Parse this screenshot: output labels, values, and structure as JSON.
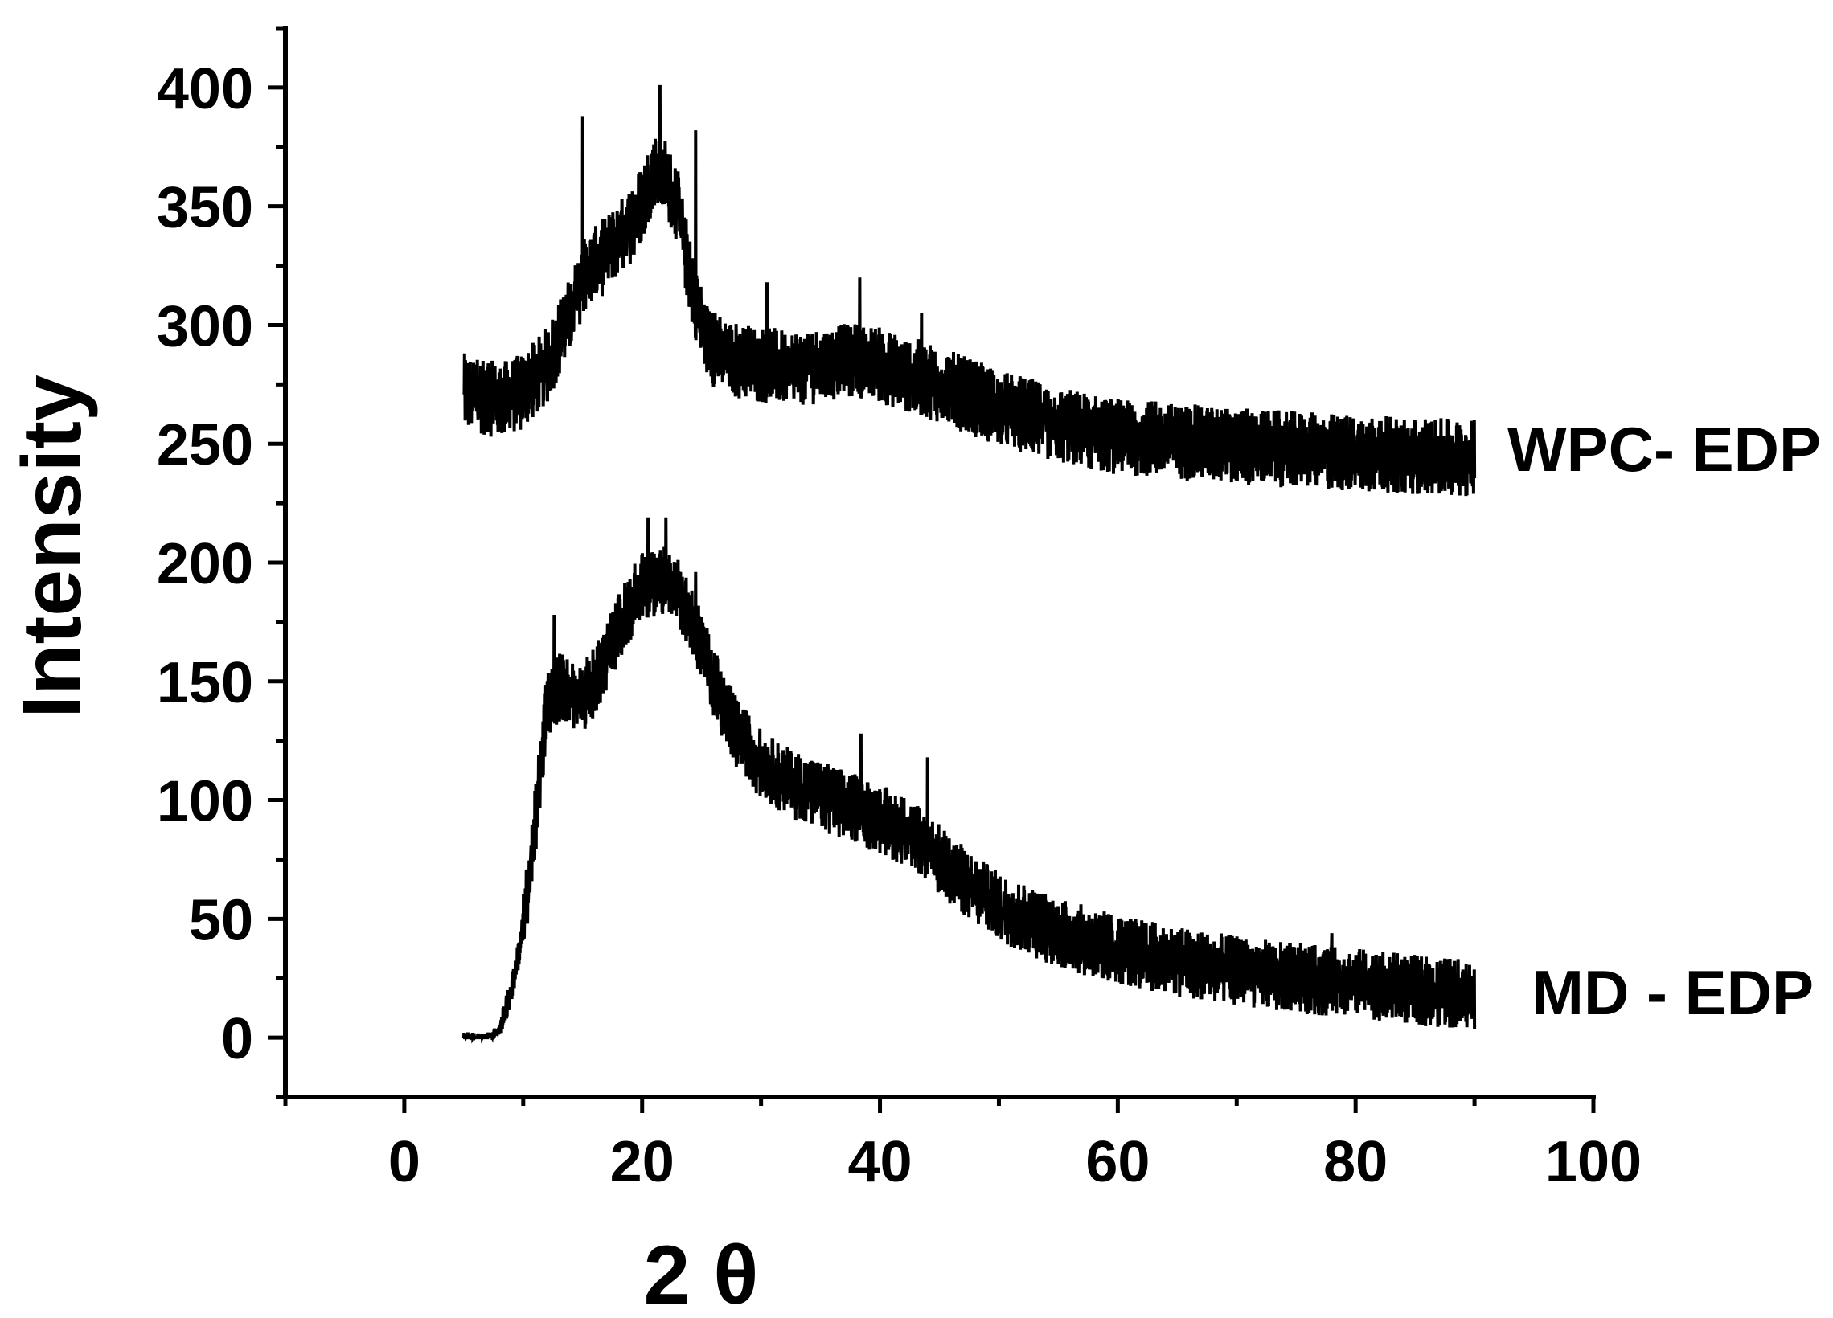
{
  "chart_data": {
    "type": "line",
    "title": "",
    "xlabel": "2 θ",
    "ylabel": "Intensity",
    "xlim": [
      -10,
      100
    ],
    "ylim": [
      -25,
      425
    ],
    "x_ticks": [
      0,
      20,
      40,
      60,
      80,
      100
    ],
    "y_ticks": [
      0,
      50,
      100,
      150,
      200,
      250,
      300,
      350,
      400
    ],
    "grid": false,
    "legend": "none",
    "line_color": "#000000",
    "series": [
      {
        "name": "WPC- EDP",
        "x_range": [
          5,
          90
        ],
        "profile_x": [
          5,
          8,
          10,
          12,
          14,
          15,
          17,
          19,
          20,
          21,
          22,
          23,
          24,
          25,
          26,
          28,
          30,
          33,
          35,
          38,
          40,
          42,
          45,
          50,
          55,
          60,
          70,
          80,
          90
        ],
        "profile_y": [
          272,
          268,
          272,
          283,
          305,
          320,
          330,
          342,
          352,
          365,
          362,
          350,
          320,
          300,
          290,
          285,
          283,
          282,
          283,
          285,
          283,
          280,
          275,
          265,
          258,
          253,
          249,
          246,
          244
        ],
        "noise": 12,
        "spikes": [
          [
            15,
            388
          ],
          [
            21.5,
            401
          ],
          [
            24.5,
            382
          ],
          [
            38.3,
            320
          ],
          [
            30.5,
            318
          ],
          [
            43.5,
            305
          ]
        ]
      },
      {
        "name": "MD - EDP",
        "x_range": [
          5,
          90
        ],
        "profile_x": [
          5,
          7,
          8,
          9,
          10,
          11,
          12,
          13,
          14,
          15,
          16,
          17,
          18,
          19,
          20,
          21,
          22,
          23,
          24,
          25,
          26,
          27,
          28,
          30,
          32,
          35,
          38,
          40,
          43,
          45,
          48,
          50,
          55,
          60,
          65,
          70,
          75,
          80,
          85,
          90
        ],
        "profile_y": [
          0,
          0,
          3,
          20,
          45,
          90,
          140,
          148,
          145,
          143,
          150,
          160,
          172,
          182,
          190,
          192,
          192,
          188,
          178,
          165,
          150,
          138,
          128,
          115,
          108,
          102,
          96,
          92,
          85,
          75,
          62,
          55,
          44,
          37,
          32,
          28,
          25,
          23,
          20,
          18
        ],
        "noise": 11,
        "spikes": [
          [
            20.5,
            219
          ],
          [
            22,
            219
          ],
          [
            12.6,
            178
          ],
          [
            24.5,
            196
          ],
          [
            38.4,
            128
          ],
          [
            44,
            118
          ],
          [
            78,
            44
          ]
        ]
      }
    ]
  }
}
